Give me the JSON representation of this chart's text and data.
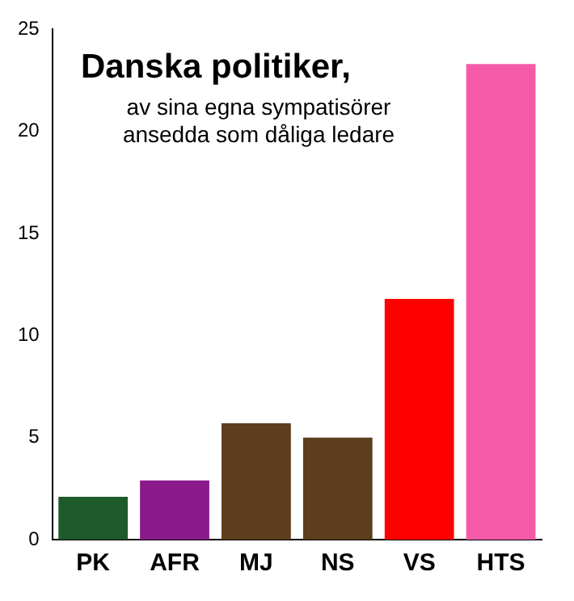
{
  "chart_data": {
    "type": "bar",
    "title": "Danska politiker,",
    "subtitle": "av sina egna sympatisörer ansedda som dåliga ledare",
    "categories": [
      "PK",
      "AFR",
      "MJ",
      "NS",
      "VS",
      "HTS"
    ],
    "values": [
      2.1,
      2.9,
      5.7,
      5.0,
      11.8,
      23.3
    ],
    "colors": [
      "#1e5a2a",
      "#8a1a8a",
      "#5c3d1e",
      "#5c3d1e",
      "#ff0000",
      "#f55aa8"
    ],
    "ylim": [
      0,
      25
    ],
    "yticks": [
      0,
      5,
      10,
      15,
      20,
      25
    ],
    "grid": false,
    "legend": false
  }
}
